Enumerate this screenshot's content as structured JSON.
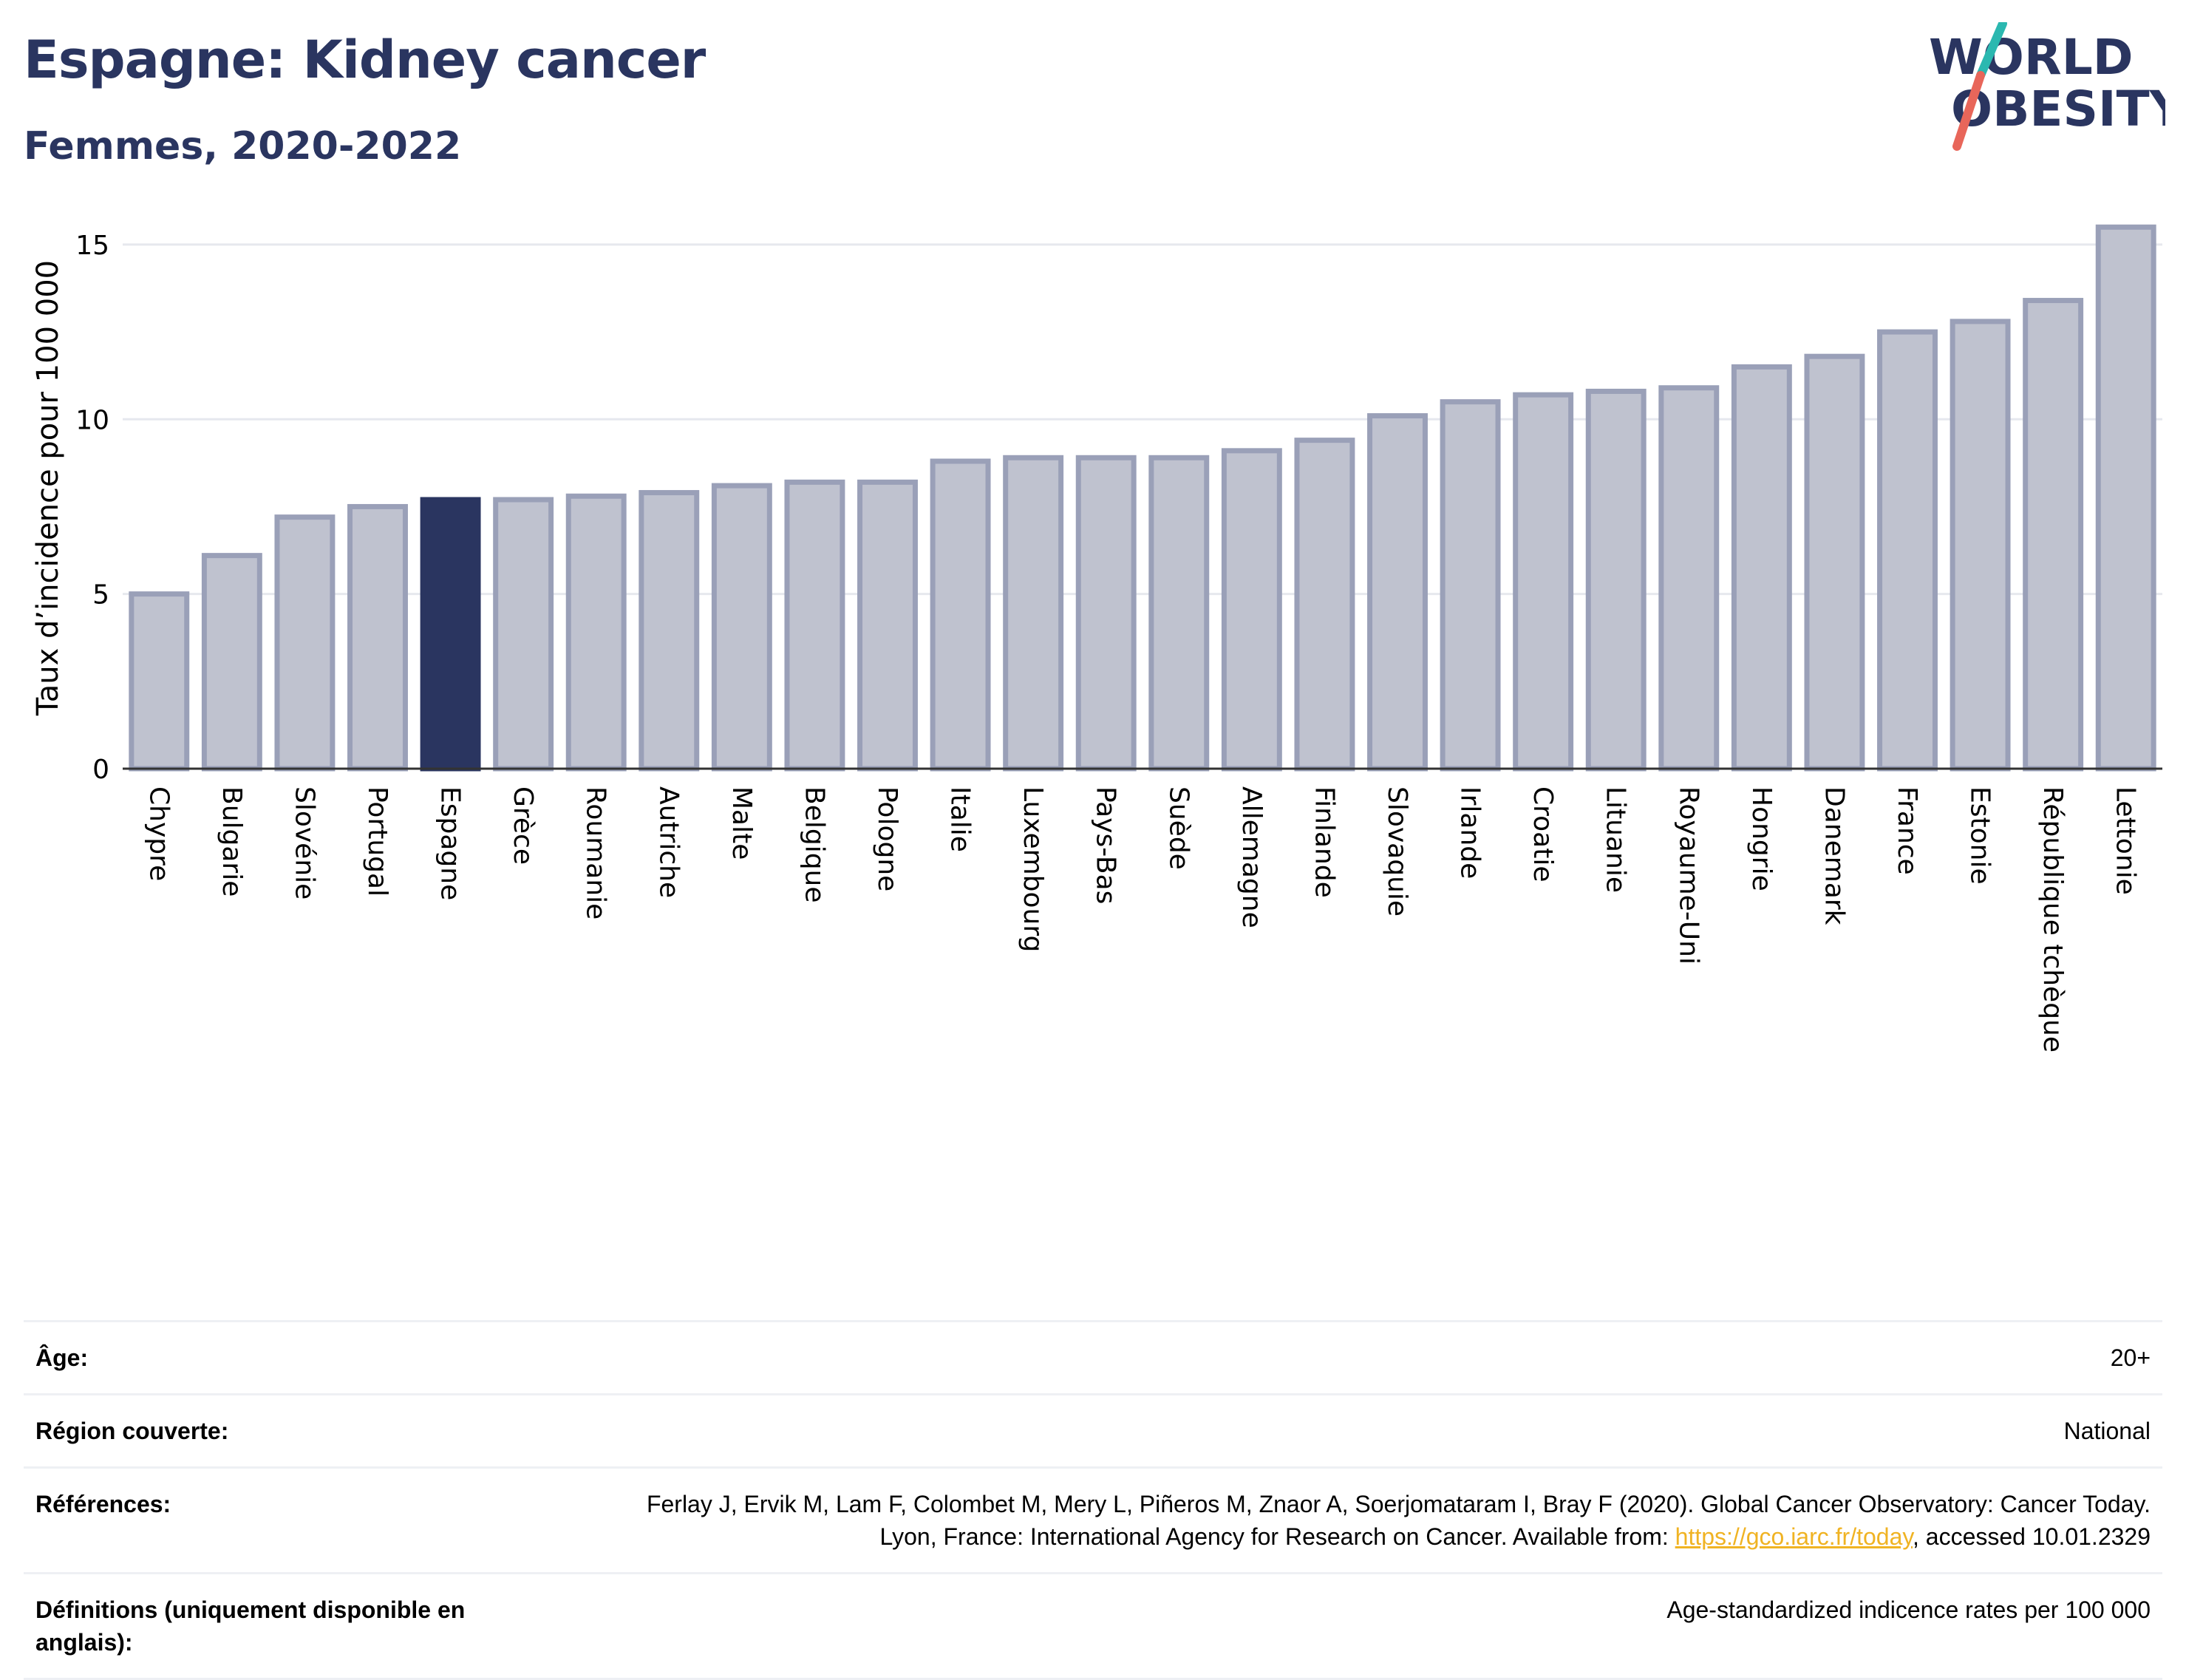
{
  "header": {
    "title": "Espagne: Kidney cancer",
    "subtitle": "Femmes, 2020-2022",
    "logo_line1": "WORLD",
    "logo_line2": "OBESITY"
  },
  "colors": {
    "title": "#2a3560",
    "bar_fill": "#bfc2cf",
    "bar_stroke": "#9aa0b8",
    "highlight": "#2a3560",
    "link": "#f0b323",
    "logo_teal": "#2bb8b0",
    "logo_red": "#e8665a"
  },
  "chart_data": {
    "type": "bar",
    "title": "Espagne: Kidney cancer",
    "subtitle": "Femmes, 2020-2022",
    "ylabel": "Taux d’incidence pour 100 000",
    "xlabel": "",
    "ylim": [
      0,
      16.5
    ],
    "yticks": [
      0,
      5,
      10,
      15
    ],
    "grid": true,
    "highlight_category": "Espagne",
    "categories": [
      "Chypre",
      "Bulgarie",
      "Slovénie",
      "Portugal",
      "Espagne",
      "Grèce",
      "Roumanie",
      "Autriche",
      "Malte",
      "Belgique",
      "Pologne",
      "Italie",
      "Luxembourg",
      "Pays-Bas",
      "Suède",
      "Allemagne",
      "Finlande",
      "Slovaquie",
      "Irlande",
      "Croatie",
      "Lituanie",
      "Royaume-Uni",
      "Hongrie",
      "Danemark",
      "France",
      "Estonie",
      "République tchèque",
      "Lettonie"
    ],
    "values": [
      5.0,
      6.1,
      7.2,
      7.5,
      7.7,
      7.7,
      7.8,
      7.9,
      8.1,
      8.2,
      8.2,
      8.8,
      8.9,
      8.9,
      8.9,
      9.1,
      9.4,
      10.1,
      10.5,
      10.7,
      10.8,
      10.9,
      11.5,
      11.8,
      12.5,
      12.8,
      13.4,
      15.5
    ]
  },
  "meta": {
    "age_label": "Âge:",
    "age_value": "20+",
    "region_label": "Région couverte:",
    "region_value": "National",
    "refs_label": "Références:",
    "refs_text_before": "Ferlay J, Ervik M, Lam F, Colombet M, Mery L, Piñeros M, Znaor A, Soerjomataram I, Bray F (2020). Global Cancer Observatory: Cancer Today. Lyon, France: International Agency for Research on Cancer. Available from: ",
    "refs_link": "https://gco.iarc.fr/today",
    "refs_text_after": ", accessed 10.01.2329",
    "defs_label": "Définitions (uniquement disponible en anglais):",
    "defs_value": "Age-standardized indicence rates per 100 000"
  }
}
